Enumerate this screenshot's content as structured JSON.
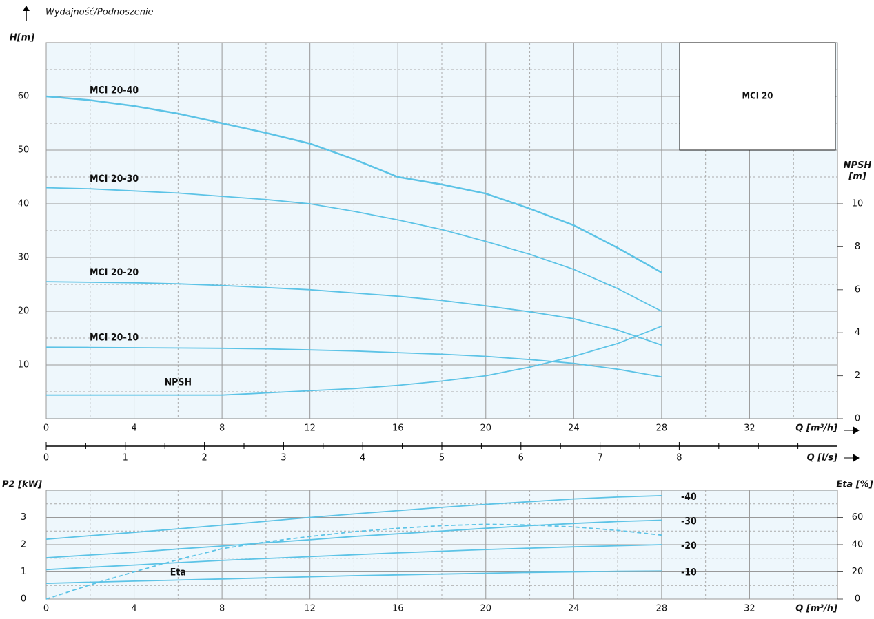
{
  "chart_data": [
    {
      "type": "line",
      "title": "Wydajność/Podnoszenie",
      "ylabel": "H[m]",
      "y2label": "NPSH [m]",
      "xlabel": "Q [m³/h]",
      "annotation": "MCI 20",
      "x": [
        0,
        2,
        4,
        6,
        8,
        10,
        12,
        14,
        16,
        18,
        20,
        22,
        24,
        26,
        28
      ],
      "xlim": [
        0,
        36
      ],
      "xticks": [
        0,
        4,
        8,
        12,
        16,
        20,
        24,
        28,
        32
      ],
      "xminorticks": [
        2,
        6,
        10,
        14,
        18,
        22,
        26,
        30,
        34
      ],
      "ylim": [
        0,
        70
      ],
      "yticks": [
        10,
        20,
        30,
        40,
        50,
        60
      ],
      "yminorticks": [
        5,
        15,
        25,
        35,
        45,
        55,
        65
      ],
      "y2lim": [
        0,
        17.5
      ],
      "y2ticks": [
        0,
        2,
        4,
        6,
        8,
        10
      ],
      "grid": true,
      "series": [
        {
          "name": "MCI 20-40",
          "color": "#5cc3e6",
          "values": [
            60,
            59.3,
            58.2,
            56.8,
            55,
            53.2,
            51.2,
            48.3,
            45,
            43.6,
            41.9,
            39.1,
            36,
            31.8,
            27.2
          ]
        },
        {
          "name": "MCI 20-30",
          "color": "#5cc3e6",
          "values": [
            43,
            42.8,
            42.4,
            42,
            41.4,
            40.8,
            40,
            38.6,
            37,
            35.2,
            33,
            30.6,
            27.8,
            24.2,
            20
          ]
        },
        {
          "name": "MCI 20-20",
          "color": "#5cc3e6",
          "values": [
            25.5,
            25.4,
            25.3,
            25.1,
            24.8,
            24.4,
            24,
            23.4,
            22.8,
            22,
            21,
            19.9,
            18.6,
            16.5,
            13.7
          ]
        },
        {
          "name": "MCI 20-10",
          "color": "#5cc3e6",
          "values": [
            13.3,
            13.25,
            13.2,
            13.15,
            13.1,
            13,
            12.8,
            12.6,
            12.3,
            12,
            11.6,
            11,
            10.3,
            9.2,
            7.8
          ]
        },
        {
          "name": "NPSH",
          "color": "#5cc3e6",
          "axis": "y2",
          "values": [
            1.1,
            1.1,
            1.1,
            1.1,
            1.1,
            1.2,
            1.3,
            1.4,
            1.55,
            1.75,
            2.0,
            2.4,
            2.9,
            3.5,
            4.3
          ]
        }
      ]
    },
    {
      "type": "axis",
      "xlabel": "Q [l/s]",
      "xlim": [
        0,
        10
      ],
      "xticks": [
        0,
        1,
        2,
        3,
        4,
        5,
        6,
        7,
        8
      ],
      "xminorticks": [
        0.5,
        1.5,
        2.5,
        3.5,
        4.5,
        5.5,
        6.5,
        7.5,
        8.5,
        9,
        9.5
      ]
    },
    {
      "type": "line",
      "ylabel": "P2 [kW]",
      "y2label": "Eta [%]",
      "xlabel": "Q [m³/h]",
      "x": [
        0,
        2,
        4,
        6,
        8,
        10,
        12,
        14,
        16,
        18,
        20,
        22,
        24,
        26,
        28
      ],
      "xlim": [
        0,
        36
      ],
      "xticks": [
        0,
        4,
        8,
        12,
        16,
        20,
        24,
        28,
        32
      ],
      "xminorticks": [
        2,
        6,
        10,
        14,
        18,
        22,
        26,
        30,
        34
      ],
      "ylim": [
        0,
        4
      ],
      "yticks": [
        0,
        1,
        2,
        3
      ],
      "yminorticks": [
        0.5,
        1.5,
        2.5,
        3.5
      ],
      "y2lim": [
        0,
        80
      ],
      "y2ticks": [
        0,
        20,
        40,
        60
      ],
      "grid": true,
      "series": [
        {
          "name": "-40",
          "color": "#5cc3e6",
          "values": [
            2.2,
            2.33,
            2.45,
            2.58,
            2.72,
            2.86,
            3.0,
            3.13,
            3.25,
            3.37,
            3.48,
            3.58,
            3.68,
            3.75,
            3.8
          ]
        },
        {
          "name": "-30",
          "color": "#5cc3e6",
          "values": [
            1.52,
            1.62,
            1.72,
            1.84,
            1.95,
            2.07,
            2.18,
            2.3,
            2.4,
            2.5,
            2.6,
            2.7,
            2.78,
            2.85,
            2.9
          ]
        },
        {
          "name": "-20",
          "color": "#5cc3e6",
          "values": [
            1.08,
            1.17,
            1.25,
            1.34,
            1.42,
            1.49,
            1.56,
            1.63,
            1.7,
            1.76,
            1.82,
            1.87,
            1.92,
            1.96,
            2.0
          ]
        },
        {
          "name": "-10",
          "color": "#5cc3e6",
          "values": [
            0.58,
            0.62,
            0.66,
            0.7,
            0.74,
            0.78,
            0.82,
            0.86,
            0.89,
            0.92,
            0.95,
            0.98,
            1.0,
            1.02,
            1.03
          ]
        },
        {
          "name": "Eta",
          "color": "#5cc3e6",
          "axis": "y2",
          "dashed": true,
          "values": [
            0,
            10.5,
            20,
            29,
            37,
            42,
            46,
            49.5,
            52,
            54,
            55,
            54.5,
            53,
            50.5,
            47
          ]
        }
      ]
    }
  ]
}
